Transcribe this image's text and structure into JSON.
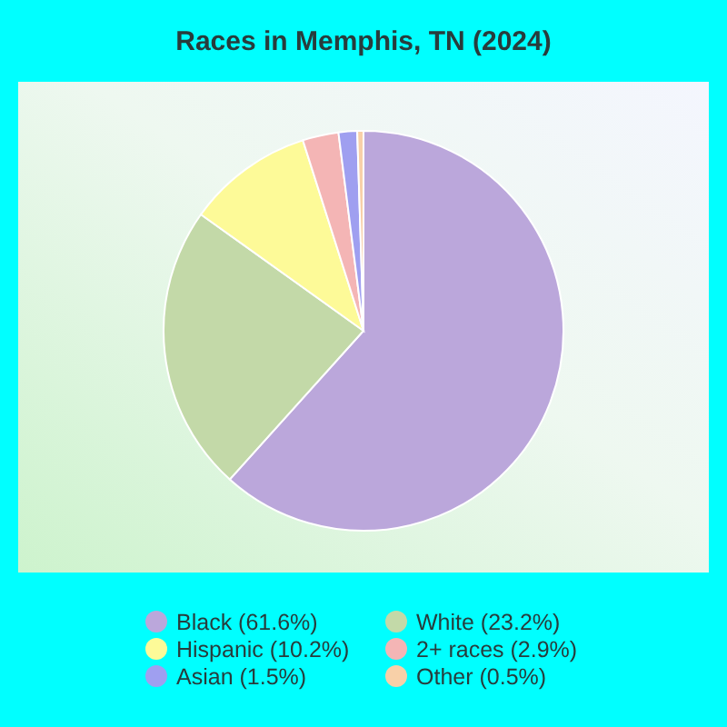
{
  "chart_data": {
    "type": "pie",
    "title": "Races in Memphis, TN (2024)",
    "categories": [
      "Black (61.6%)",
      "White (23.2%)",
      "Hispanic (10.2%)",
      "2+ races (2.9%)",
      "Asian (1.5%)",
      "Other (0.5%)"
    ],
    "values": [
      61.6,
      23.2,
      10.2,
      2.9,
      1.5,
      0.5
    ],
    "colors": [
      "#bba7db",
      "#c3d9a8",
      "#fdfa98",
      "#f4b5b5",
      "#9f9ff0",
      "#f8d0a8"
    ],
    "legend": "bottom"
  }
}
